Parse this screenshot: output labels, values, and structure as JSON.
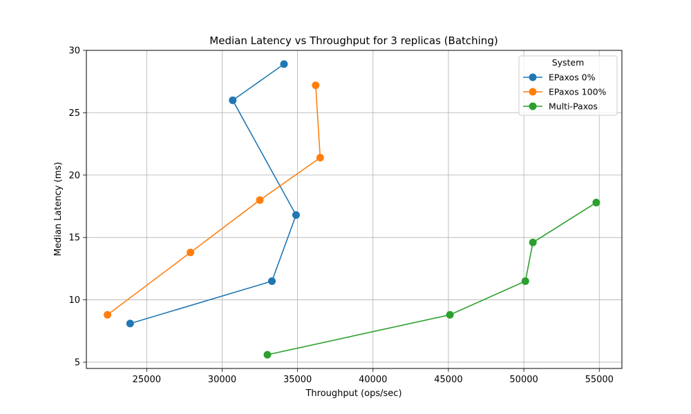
{
  "chart_data": {
    "type": "line",
    "title": "Median Latency vs Throughput for 3 replicas (Batching)",
    "xlabel": "Throughput (ops/sec)",
    "ylabel": "Median Latency (ms)",
    "xlim": [
      21000,
      56500
    ],
    "ylim": [
      4.5,
      30
    ],
    "xticks": [
      25000,
      30000,
      35000,
      40000,
      45000,
      50000,
      55000
    ],
    "yticks": [
      5,
      10,
      15,
      20,
      25,
      30
    ],
    "grid": true,
    "legend": {
      "title": "System",
      "placement": "top-right"
    },
    "series": [
      {
        "name": "EPaxos 0%",
        "color": "#1f77b4",
        "points": [
          {
            "x": 23900,
            "y": 8.1
          },
          {
            "x": 33300,
            "y": 11.5
          },
          {
            "x": 34900,
            "y": 16.8
          },
          {
            "x": 30700,
            "y": 26.0
          },
          {
            "x": 34100,
            "y": 28.9
          }
        ]
      },
      {
        "name": "EPaxos 100%",
        "color": "#ff7f0e",
        "points": [
          {
            "x": 22400,
            "y": 8.8
          },
          {
            "x": 27900,
            "y": 13.8
          },
          {
            "x": 32500,
            "y": 18.0
          },
          {
            "x": 36500,
            "y": 21.4
          },
          {
            "x": 36200,
            "y": 27.2
          }
        ]
      },
      {
        "name": "Multi-Paxos",
        "color": "#2ca02c",
        "points": [
          {
            "x": 33000,
            "y": 5.6
          },
          {
            "x": 45100,
            "y": 8.8
          },
          {
            "x": 50100,
            "y": 11.5
          },
          {
            "x": 50600,
            "y": 14.6
          },
          {
            "x": 54800,
            "y": 17.8
          }
        ]
      }
    ]
  }
}
